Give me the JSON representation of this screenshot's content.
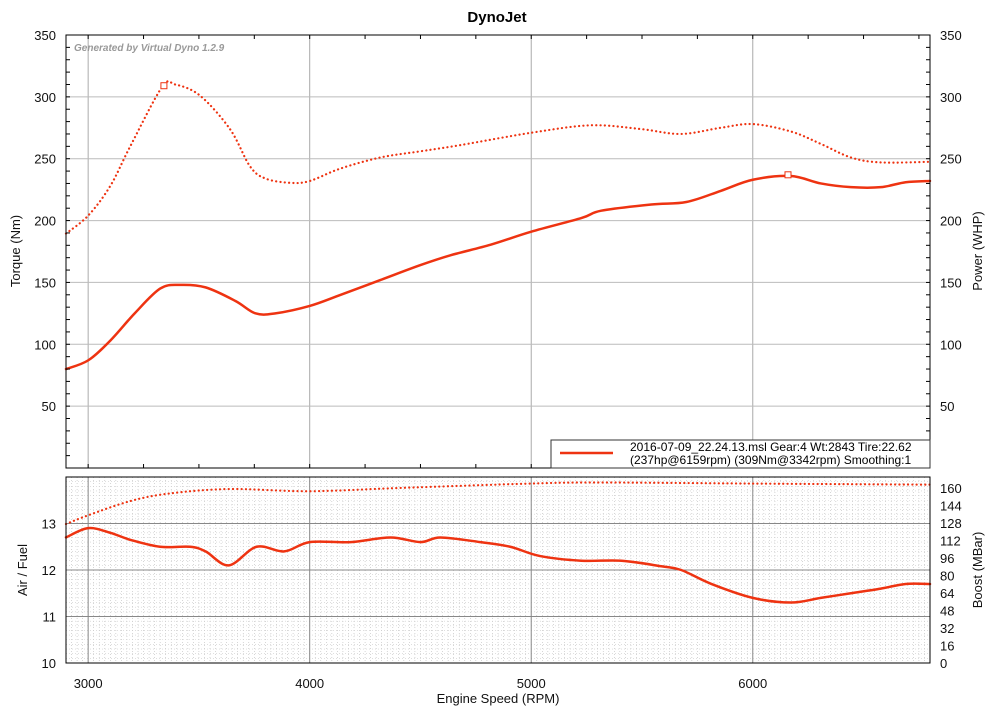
{
  "chart_data": [
    {
      "type": "line",
      "title": "DynoJet",
      "watermark": "Generated by Virtual Dyno 1.2.9",
      "xlabel": "Engine Speed (RPM)",
      "ylabel": "Torque (Nm)",
      "y2label": "Power (WHP)",
      "xlim": [
        2900,
        6800
      ],
      "ylim": [
        0,
        350
      ],
      "y2lim": [
        0,
        350
      ],
      "xticks": [
        3000,
        4000,
        5000,
        6000
      ],
      "yticks": [
        50,
        100,
        150,
        200,
        250,
        300,
        350
      ],
      "grid": true,
      "legend": {
        "placement": "bottom-right",
        "line1": "2016-07-09_22.24.13.msl Gear:4 Wt:2843 Tire:22.62",
        "line2": "(237hp@6159rpm) (309Nm@3342rpm) Smoothing:1"
      },
      "series": [
        {
          "name": "Torque (Nm)",
          "style": "dotted",
          "color": "#ee3311",
          "peak": {
            "x": 3342,
            "y": 309
          },
          "x": [
            2900,
            3000,
            3100,
            3190,
            3334,
            3393,
            3505,
            3640,
            3730,
            3800,
            3912,
            4000,
            4138,
            4319,
            4500,
            4680,
            5000,
            5268,
            5494,
            5675,
            5855,
            6000,
            6172,
            6307,
            6443,
            6578,
            6800
          ],
          "y": [
            189.5,
            204,
            228,
            260,
            308,
            310,
            301,
            274,
            244,
            234,
            230.5,
            232,
            242,
            251,
            256,
            261,
            271,
            277,
            274,
            270,
            275,
            278,
            272,
            262,
            251,
            247,
            247.5
          ]
        },
        {
          "name": "Power (WHP)",
          "style": "solid",
          "color": "#ee3311",
          "peak": {
            "x": 6159,
            "y": 237
          },
          "x": [
            2900,
            3000,
            3100,
            3210,
            3325,
            3415,
            3530,
            3665,
            3755,
            3845,
            4000,
            4140,
            4320,
            4500,
            4637,
            4817,
            5000,
            5226,
            5316,
            5542,
            5700,
            5855,
            6000,
            6172,
            6307,
            6443,
            6578,
            6690,
            6800
          ],
          "y": [
            80,
            87,
            103,
            125,
            145,
            148,
            146,
            135,
            125,
            125,
            131,
            140,
            152,
            164,
            172,
            180.5,
            191,
            202,
            208,
            213,
            215,
            224,
            233,
            236,
            230,
            227,
            227,
            231,
            232
          ]
        }
      ]
    },
    {
      "type": "line",
      "xlabel": "Engine Speed (RPM)",
      "ylabel": "Air / Fuel",
      "y2label": "Boost (MBar)",
      "xlim": [
        2900,
        6800
      ],
      "ylim": [
        10,
        14
      ],
      "y2lim": [
        0,
        170
      ],
      "xticks": [
        3000,
        4000,
        5000,
        6000
      ],
      "yticks": [
        10,
        11,
        12,
        13
      ],
      "y2ticks": [
        0,
        16,
        32,
        48,
        64,
        80,
        96,
        112,
        128,
        144,
        160
      ],
      "grid": true,
      "series": [
        {
          "name": "Air / Fuel",
          "style": "solid",
          "color": "#ee3311",
          "x": [
            2900,
            3000,
            3100,
            3190,
            3325,
            3460,
            3530,
            3635,
            3760,
            3885,
            4000,
            4185,
            4365,
            4500,
            4590,
            4770,
            4905,
            5040,
            5226,
            5407,
            5587,
            5677,
            5813,
            6000,
            6172,
            6307,
            6443,
            6578,
            6690,
            6800
          ],
          "y": [
            12.7,
            12.9,
            12.8,
            12.65,
            12.5,
            12.5,
            12.4,
            12.1,
            12.5,
            12.4,
            12.6,
            12.6,
            12.7,
            12.6,
            12.7,
            12.6,
            12.5,
            12.3,
            12.2,
            12.2,
            12.08,
            12.0,
            11.7,
            11.4,
            11.3,
            11.4,
            11.5,
            11.6,
            11.7,
            11.7
          ]
        },
        {
          "name": "Boost (MBar)",
          "style": "dotted",
          "color": "#ee3311",
          "axis": "right",
          "x": [
            2900,
            3000,
            3190,
            3370,
            3640,
            4000,
            4410,
            5000,
            5316,
            6000,
            6800
          ],
          "y": [
            127,
            135,
            148,
            155,
            159,
            157,
            160,
            164,
            165,
            164,
            163
          ]
        }
      ]
    }
  ]
}
